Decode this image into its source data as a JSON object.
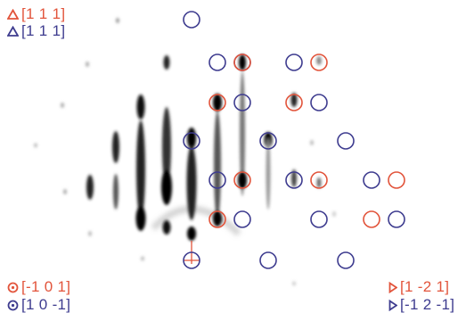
{
  "colors": {
    "variant_red": "#e2543b",
    "variant_blue": "#3e3c8f",
    "background": "#ffffff",
    "streak": "#111111"
  },
  "legend": {
    "top": [
      {
        "label": "[1 1 1]",
        "color": "#e2543b",
        "marker": "triangle-up"
      },
      {
        "label": "[1 1 1]",
        "color": "#3e3c8f",
        "marker": "triangle-up"
      }
    ],
    "bottom_left": [
      {
        "label": "[-1 0 1]",
        "color": "#e2543b",
        "marker": "dotted-circle"
      },
      {
        "label": "[1 0 -1]",
        "color": "#3e3c8f",
        "marker": "dotted-circle"
      }
    ],
    "bottom_right": [
      {
        "label": "[1 -2 1]",
        "color": "#e2543b",
        "marker": "triangle-right"
      },
      {
        "label": "[-1 2 -1]",
        "color": "#3e3c8f",
        "marker": "triangle-right"
      }
    ]
  }
}
